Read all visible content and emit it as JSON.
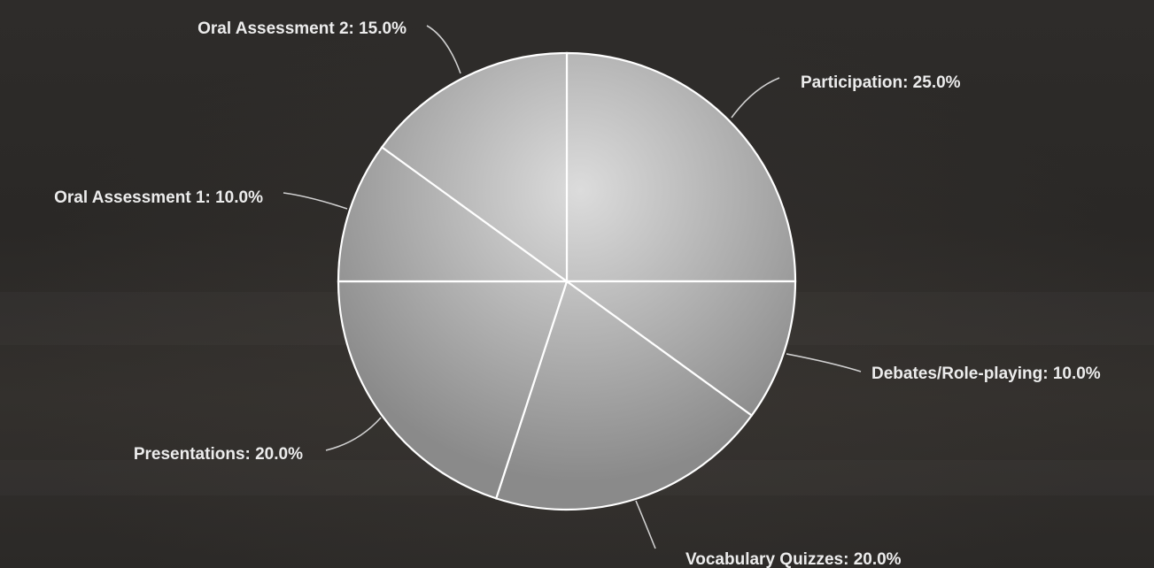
{
  "chart_data": {
    "type": "pie",
    "title": "",
    "slices": [
      {
        "label": "Participation",
        "value": 25.0,
        "text": "Participation: 25.0%"
      },
      {
        "label": "Debates/Role-playing",
        "value": 10.0,
        "text": "Debates/Role-playing: 10.0%"
      },
      {
        "label": "Vocabulary Quizzes",
        "value": 20.0,
        "text": "Vocabulary Quizzes: 20.0%"
      },
      {
        "label": "Presentations",
        "value": 20.0,
        "text": "Presentations: 20.0%"
      },
      {
        "label": "Oral Assessment 1",
        "value": 10.0,
        "text": "Oral Assessment 1: 10.0%"
      },
      {
        "label": "Oral Assessment 2",
        "value": 15.0,
        "text": "Oral Assessment 2: 15.0%"
      }
    ],
    "legend": "none",
    "grid": false
  },
  "colors": {
    "slice_center": "#dcdcdc",
    "slice_edge": "#8a8a8a",
    "slice_stroke": "#ffffff",
    "label_text": "#ececec",
    "background": "#2c2a28"
  }
}
